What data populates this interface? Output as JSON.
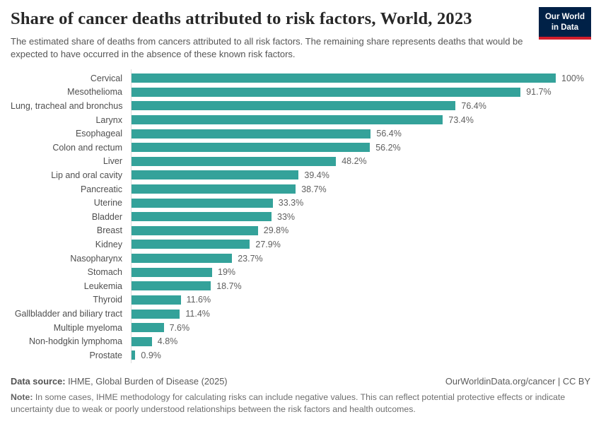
{
  "header": {
    "title": "Share of cancer deaths attributed to risk factors, World, 2023",
    "subtitle": "The estimated share of deaths from cancers attributed to all risk factors. The remaining share represents deaths that would be expected to have occurred in the absence of these known risk factors.",
    "logo": {
      "line1": "Our World",
      "line2": "in Data"
    }
  },
  "chart_data": {
    "type": "bar",
    "orientation": "horizontal",
    "title": "Share of cancer deaths attributed to risk factors, World, 2023",
    "xlabel": "",
    "ylabel": "",
    "xlim": [
      0,
      100
    ],
    "grid": false,
    "legend": "none",
    "unit": "%",
    "bar_color": "#34a29a",
    "categories": [
      "Cervical",
      "Mesothelioma",
      "Lung, tracheal and bronchus",
      "Larynx",
      "Esophageal",
      "Colon and rectum",
      "Liver",
      "Lip and oral cavity",
      "Pancreatic",
      "Uterine",
      "Bladder",
      "Breast",
      "Kidney",
      "Nasopharynx",
      "Stomach",
      "Leukemia",
      "Thyroid",
      "Gallbladder and biliary tract",
      "Multiple myeloma",
      "Non-hodgkin lymphoma",
      "Prostate"
    ],
    "values": [
      100,
      91.7,
      76.4,
      73.4,
      56.4,
      56.2,
      48.2,
      39.4,
      38.7,
      33.3,
      33,
      29.8,
      27.9,
      23.7,
      19,
      18.7,
      11.6,
      11.4,
      7.6,
      4.8,
      0.9
    ],
    "value_labels": [
      "100%",
      "91.7%",
      "76.4%",
      "73.4%",
      "56.4%",
      "56.2%",
      "48.2%",
      "39.4%",
      "38.7%",
      "33.3%",
      "33%",
      "29.8%",
      "27.9%",
      "23.7%",
      "19%",
      "18.7%",
      "11.6%",
      "11.4%",
      "7.6%",
      "4.8%",
      "0.9%"
    ]
  },
  "footer": {
    "source_label": "Data source:",
    "source_text": "IHME, Global Burden of Disease (2025)",
    "attribution": "OurWorldinData.org/cancer | CC BY",
    "note_label": "Note:",
    "note_text": "In some cases, IHME methodology for calculating risks can include negative values. This can reflect potential protective effects or indicate uncertainty due to weak or poorly understood relationships between the risk factors and health outcomes."
  },
  "colors": {
    "bar_teal": "#34a29a",
    "logo_navy": "#002147",
    "logo_red": "#d21e2c",
    "axis_line": "#dcdcdc",
    "title_text": "#272727",
    "body_text": "#555555"
  }
}
